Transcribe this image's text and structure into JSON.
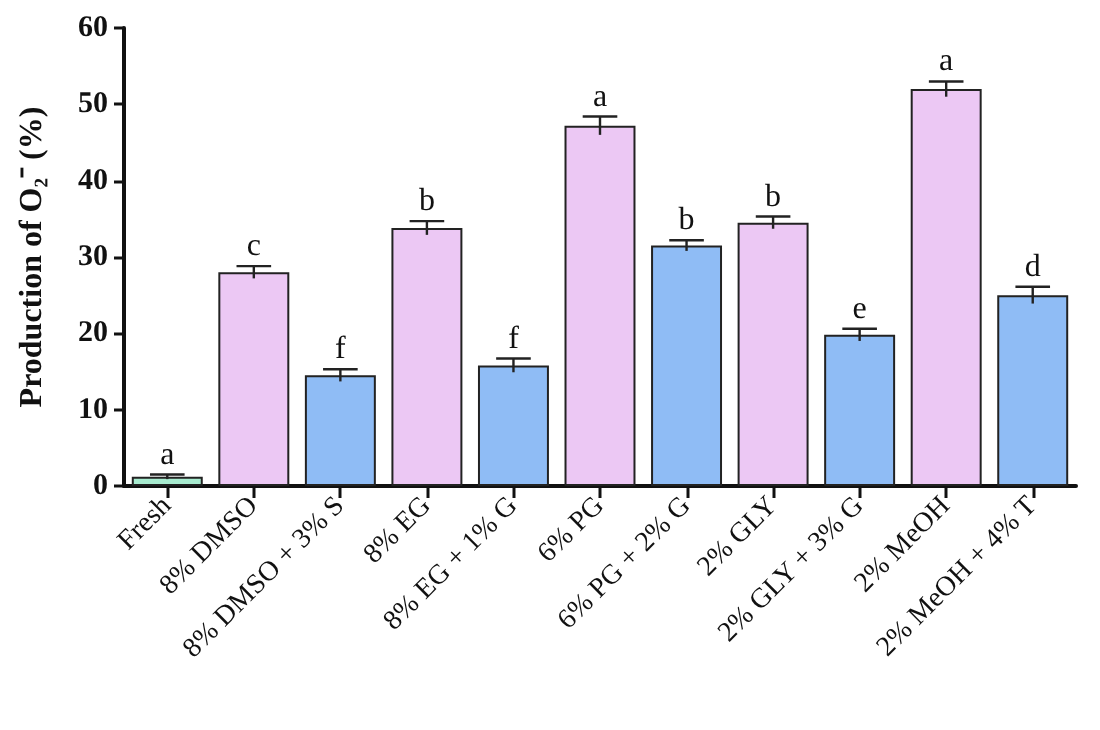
{
  "chart_data": {
    "type": "bar",
    "ylabel": "Production of O₂⁻ (%)",
    "categories": [
      "Fresh",
      "8% DMSO",
      "8% DMSO + 3% S",
      "8% EG",
      "8% EG + 1% G",
      "6% PG",
      "6% PG + 2% G",
      "2% GLY",
      "2% GLY + 3% G",
      "2% MeOH",
      "2% MeOH + 4% T"
    ],
    "values": [
      1.2,
      28,
      14.5,
      33.8,
      15.8,
      47.2,
      31.5,
      34.5,
      19.8,
      52,
      25
    ],
    "errors": [
      0.3,
      0.8,
      0.8,
      0.9,
      0.9,
      1.2,
      0.7,
      0.8,
      0.8,
      1,
      1.1
    ],
    "value_labels": [
      "a",
      "c",
      "f",
      "b",
      "f",
      "a",
      "b",
      "b",
      "e",
      "a",
      "d"
    ],
    "colors": [
      "#a8ecd0",
      "#ecc8f4",
      "#8fbcf5",
      "#ecc8f4",
      "#8fbcf5",
      "#ecc8f4",
      "#8fbcf5",
      "#ecc8f4",
      "#8fbcf5",
      "#ecc8f4",
      "#8fbcf5"
    ],
    "ylim": [
      0,
      60
    ],
    "yticks": [
      0,
      10,
      20,
      30,
      40,
      50,
      60
    ]
  }
}
